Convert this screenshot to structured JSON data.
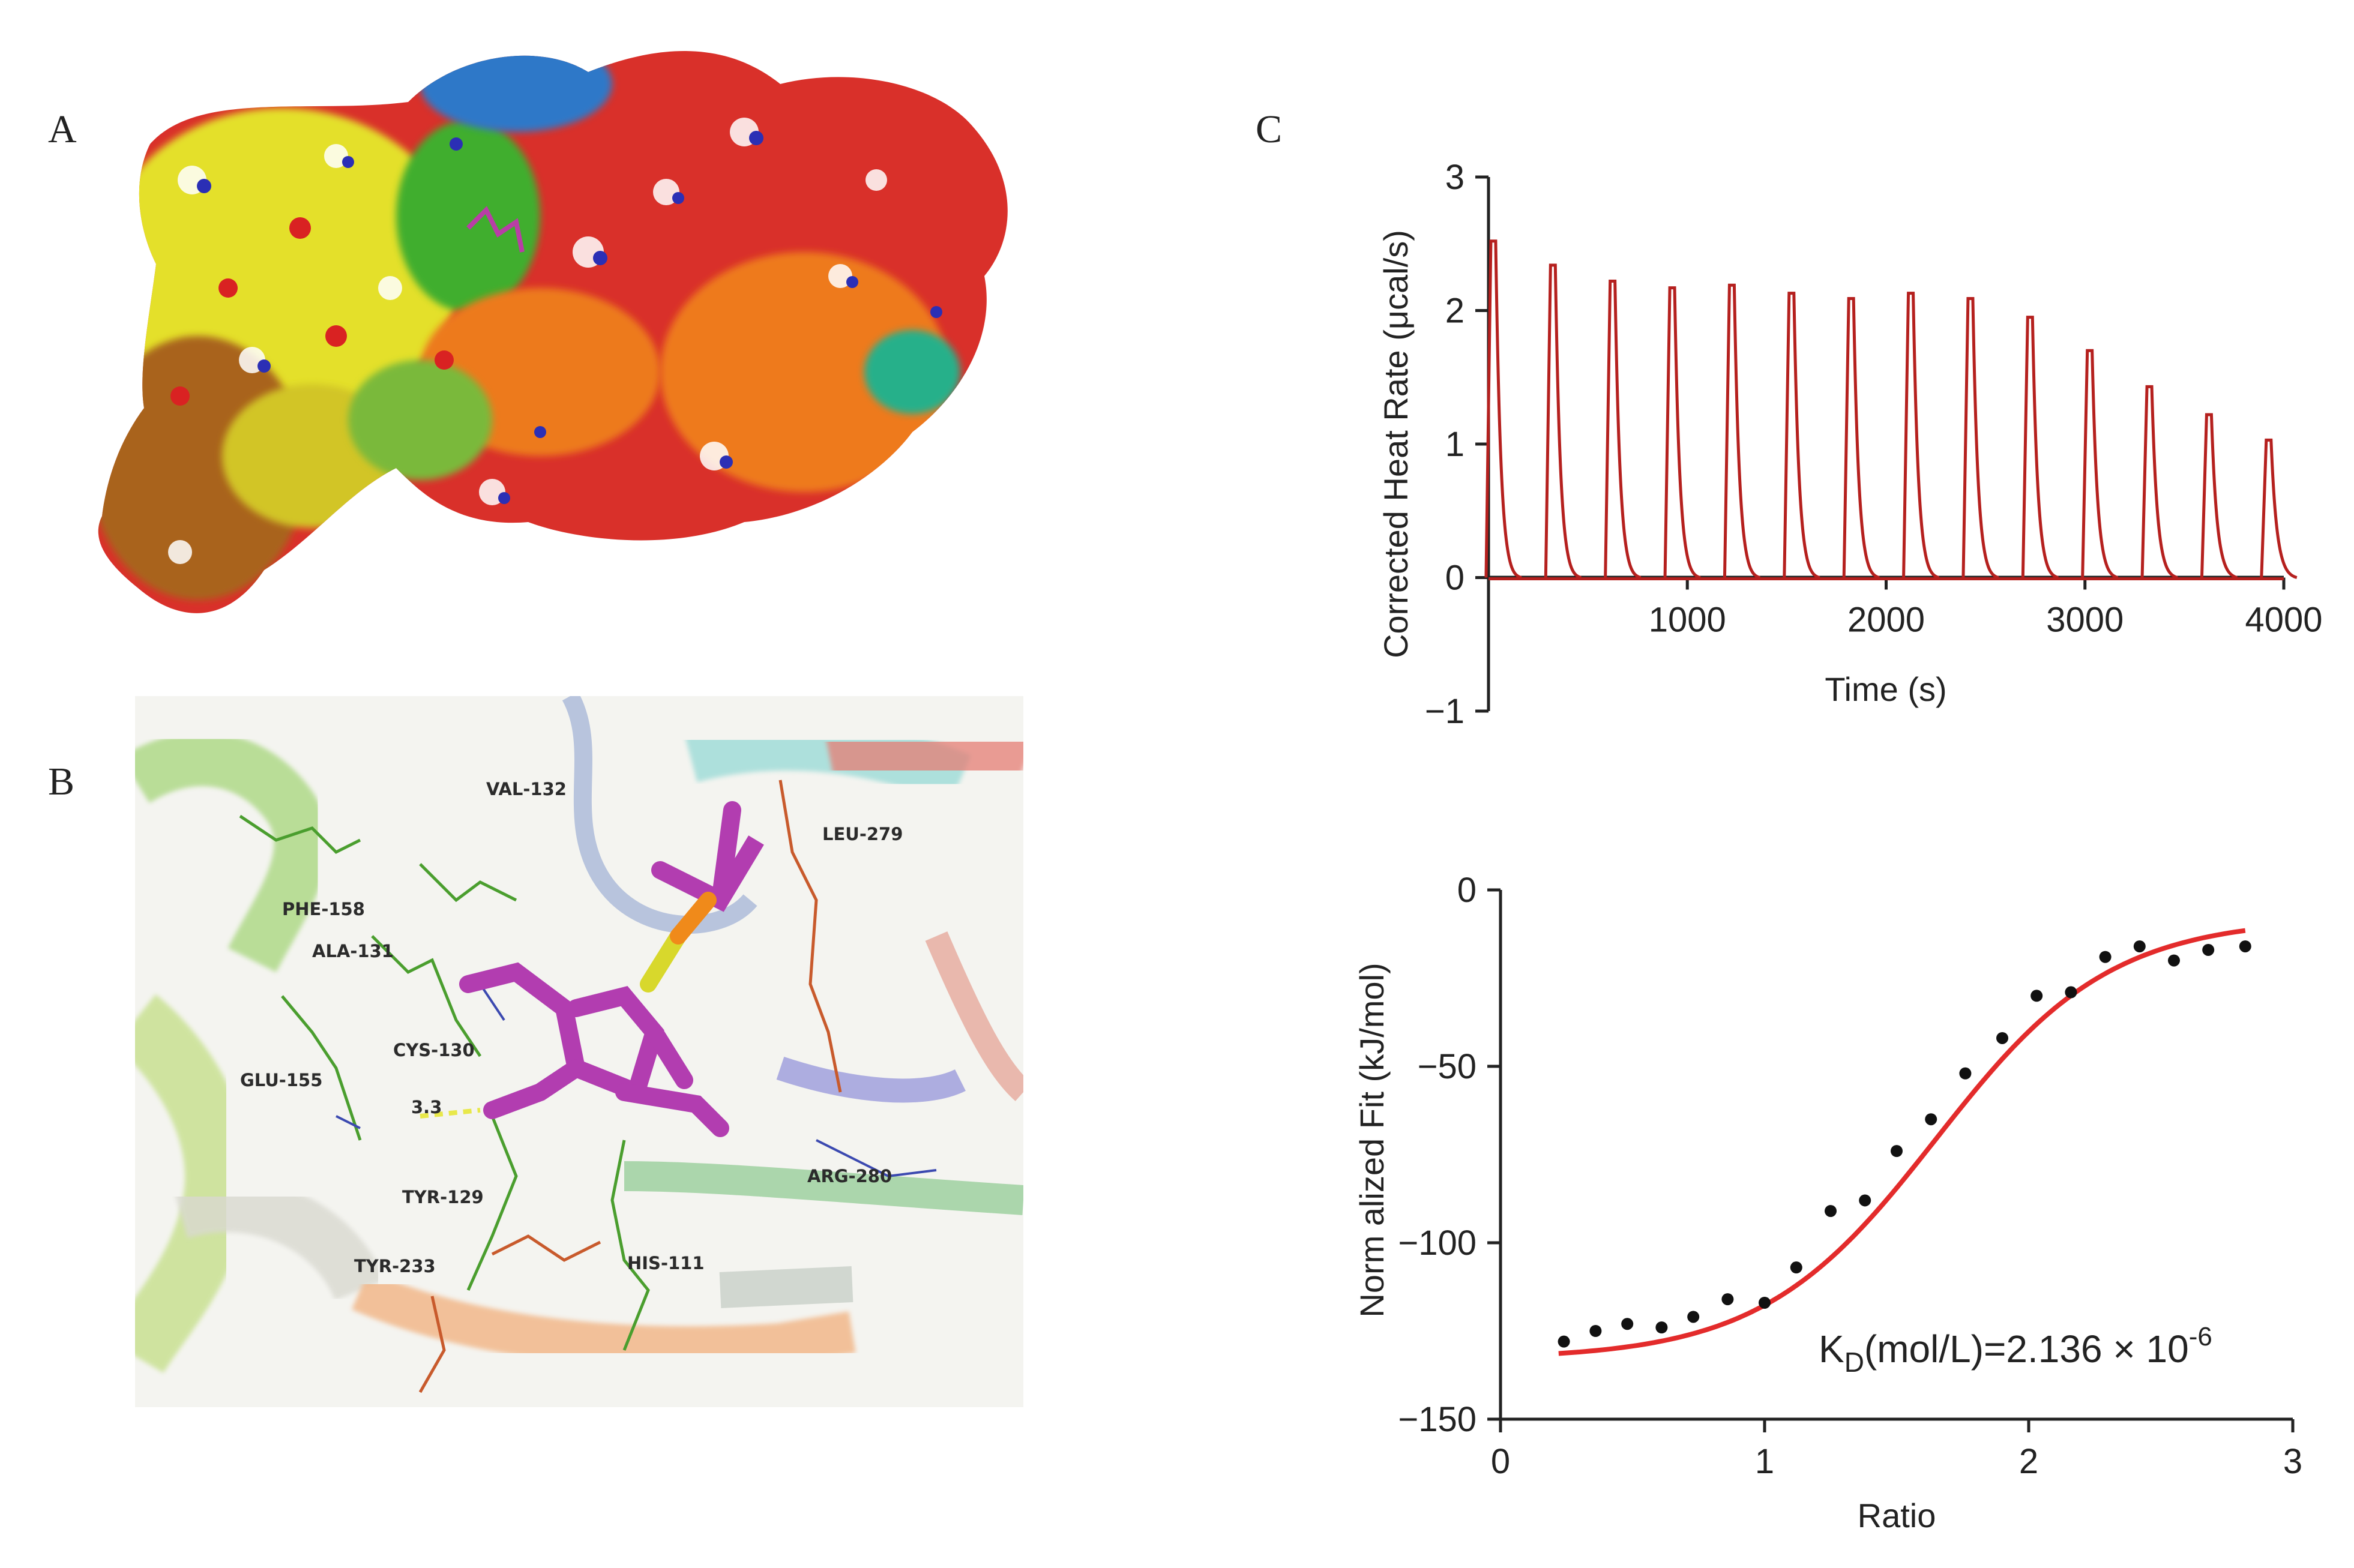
{
  "panels": {
    "a": {
      "letter": "A"
    },
    "b": {
      "letter": "B"
    },
    "c": {
      "letter": "C"
    }
  },
  "molecular_view": {
    "residue_labels": [
      "VAL-132",
      "LEU-279",
      "PHE-158",
      "ALA-131",
      "CYS-130",
      "GLU-155",
      "3.3",
      "ARG-280",
      "TYR-129",
      "TYR-233",
      "HIS-111"
    ]
  },
  "chart_data": [
    {
      "type": "line",
      "xlabel": "Time (s)",
      "ylabel": "Corrected Heat Rate (μcal/s)",
      "xlim": [
        0,
        4000
      ],
      "ylim": [
        -1,
        3
      ],
      "xticks": [
        "1000",
        "2000",
        "3000",
        "4000"
      ],
      "yticks": [
        "3",
        "2",
        "1",
        "0",
        "−1"
      ],
      "peak_times": [
        30,
        330,
        630,
        930,
        1230,
        1530,
        1830,
        2130,
        2430,
        2730,
        3030,
        3330,
        3630,
        3930
      ],
      "peak_heights": [
        2.52,
        2.34,
        2.22,
        2.17,
        2.19,
        2.13,
        2.09,
        2.13,
        2.09,
        1.95,
        1.7,
        1.43,
        1.22,
        1.03
      ],
      "color": "#b5201e"
    },
    {
      "type": "scatter",
      "xlabel": "Ratio",
      "ylabel": "Norm alized Fit (kJ/mol)",
      "xlim": [
        0,
        3
      ],
      "ylim": [
        -150,
        0
      ],
      "xticks": [
        "0",
        "1",
        "2",
        "3"
      ],
      "yticks": [
        "0",
        "−50",
        "−100",
        "−150"
      ],
      "points_x": [
        0.24,
        0.36,
        0.48,
        0.61,
        0.73,
        0.86,
        1.0,
        1.12,
        1.25,
        1.38,
        1.5,
        1.63,
        1.76,
        1.9,
        2.03,
        2.16,
        2.29,
        2.42,
        2.55,
        2.68,
        2.82
      ],
      "points_y": [
        -128,
        -125,
        -123,
        -124,
        -121,
        -116,
        -117,
        -107,
        -91,
        -88,
        -74,
        -65,
        -52,
        -42,
        -30,
        -29,
        -19,
        -16,
        -20,
        -17,
        -16
      ],
      "fit_color": "#e32b2b",
      "annotation": {
        "main": "K",
        "sub": "D",
        "units": "(mol/L)=2.136 × 10",
        "exp": "-6"
      }
    }
  ]
}
